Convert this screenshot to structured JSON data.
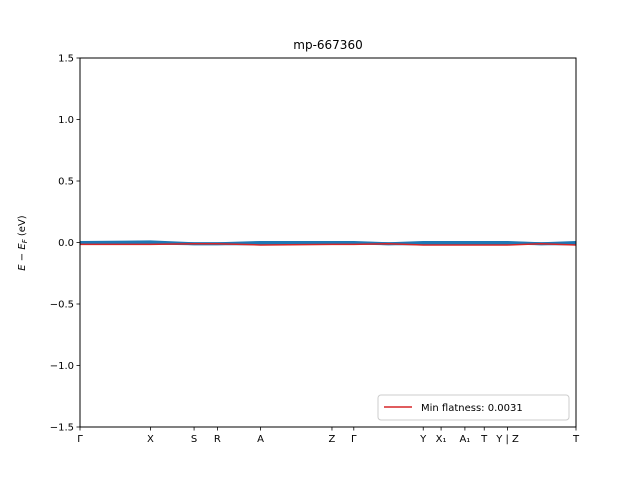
{
  "chart_data": {
    "type": "line",
    "title": "mp-667360",
    "ylabel": "E − E_F (eV)",
    "ylim": [
      -1.5,
      1.5
    ],
    "yticks": [
      1.5,
      1.0,
      0.5,
      0.0,
      -0.5,
      -1.0,
      -1.5
    ],
    "ytick_labels": [
      "1.5",
      "1.0",
      "0.5",
      "0.0",
      "−0.5",
      "−1.0",
      "−1.5"
    ],
    "xlim": [
      0,
      1
    ],
    "xticks": [
      {
        "pos": 0.0,
        "label": "Γ"
      },
      {
        "pos": 0.142,
        "label": "X"
      },
      {
        "pos": 0.23,
        "label": "S"
      },
      {
        "pos": 0.277,
        "label": "R"
      },
      {
        "pos": 0.364,
        "label": "A"
      },
      {
        "pos": 0.508,
        "label": "Z"
      },
      {
        "pos": 0.552,
        "label": "Γ"
      },
      {
        "pos": 0.692,
        "label": "Y"
      },
      {
        "pos": 0.728,
        "label": "X₁"
      },
      {
        "pos": 0.776,
        "label": "A₁"
      },
      {
        "pos": 0.815,
        "label": "T"
      },
      {
        "pos": 0.862,
        "label": "Y | Z"
      },
      {
        "pos": 1.0,
        "label": "T"
      }
    ],
    "series": [
      {
        "color": "#1f77b4",
        "x": [
          0.0,
          0.142,
          0.23,
          0.277,
          0.364,
          0.508,
          0.552,
          0.622,
          0.692,
          0.728,
          0.776,
          0.815,
          0.862,
          0.93,
          1.0
        ],
        "values": [
          0.0,
          0.005,
          -0.01,
          -0.01,
          0.0,
          0.0,
          0.0,
          -0.01,
          0.0,
          0.0,
          0.0,
          0.0,
          0.0,
          -0.01,
          0.0
        ]
      },
      {
        "color": "#1f77b4",
        "x": [
          0.0,
          0.142,
          0.23,
          0.277,
          0.364,
          0.508,
          0.552,
          0.622,
          0.692,
          0.728,
          0.776,
          0.815,
          0.862,
          0.93,
          1.0
        ],
        "values": [
          -0.005,
          -0.005,
          -0.01,
          -0.01,
          -0.01,
          -0.005,
          -0.005,
          -0.01,
          -0.01,
          -0.005,
          -0.005,
          -0.005,
          -0.005,
          -0.01,
          -0.01
        ]
      },
      {
        "name": "Min flatness: 0.0031",
        "color": "#d62728",
        "x": [
          0.0,
          0.142,
          0.23,
          0.277,
          0.364,
          0.508,
          0.552,
          0.622,
          0.692,
          0.728,
          0.776,
          0.815,
          0.862,
          0.93,
          1.0
        ],
        "values": [
          -0.015,
          -0.015,
          -0.01,
          -0.01,
          -0.02,
          -0.015,
          -0.015,
          -0.01,
          -0.02,
          -0.02,
          -0.02,
          -0.02,
          -0.02,
          -0.01,
          -0.02
        ]
      }
    ],
    "legend": {
      "position": "lower-right",
      "label": "Min flatness: 0.0031",
      "color": "#d62728"
    }
  }
}
